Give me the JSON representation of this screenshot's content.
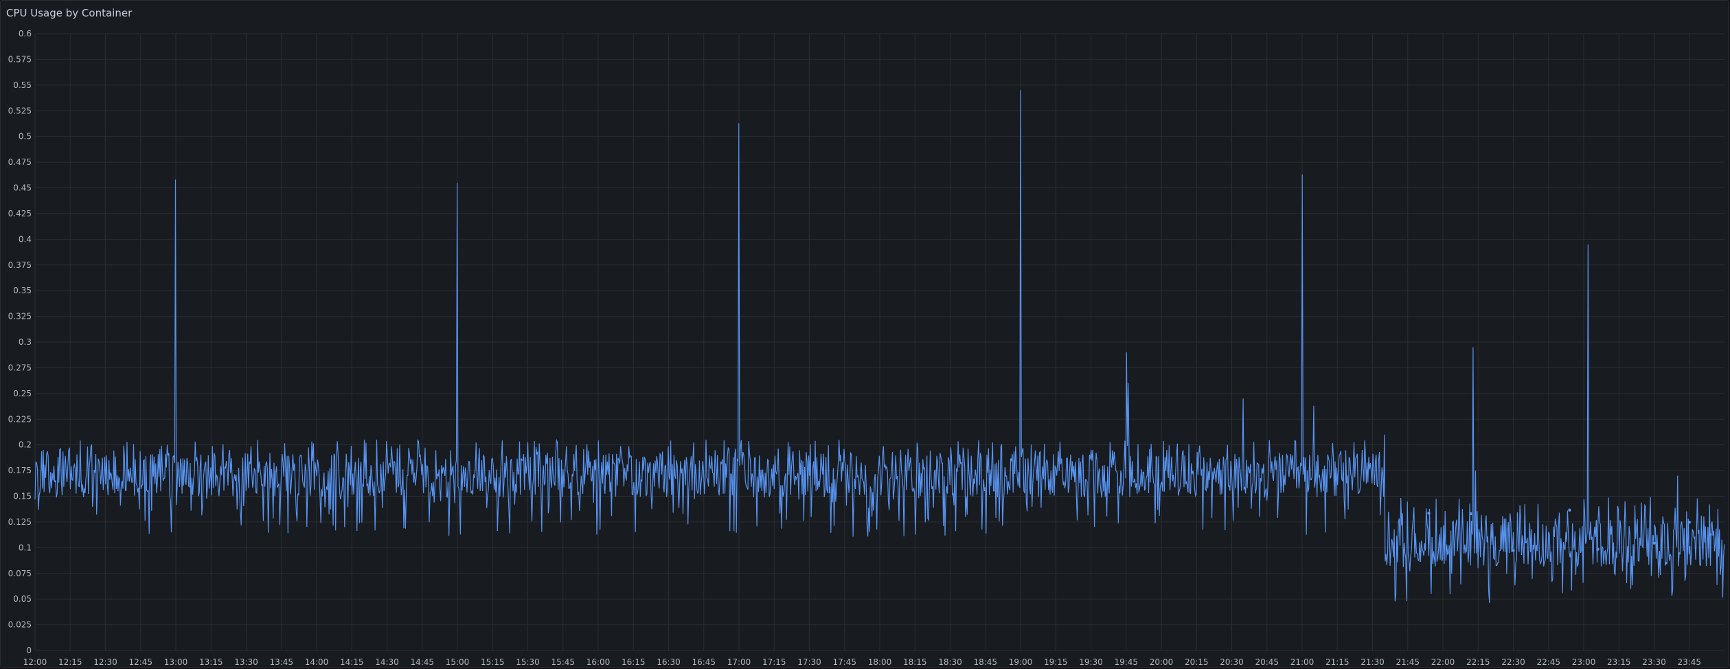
{
  "panel": {
    "title": "CPU Usage by Container"
  },
  "chart_data": {
    "type": "line",
    "title": "CPU Usage by Container",
    "xlabel": "",
    "ylabel": "",
    "ylim": [
      0,
      0.6
    ],
    "grid": true,
    "legend": "none",
    "series_color": "#5794f2",
    "background_color": "#181b1f",
    "grid_color": "#2a2d33",
    "y_ticks": [
      "0",
      "0.025",
      "0.05",
      "0.075",
      "0.1",
      "0.125",
      "0.15",
      "0.175",
      "0.2",
      "0.225",
      "0.25",
      "0.275",
      "0.3",
      "0.325",
      "0.35",
      "0.375",
      "0.4",
      "0.425",
      "0.45",
      "0.475",
      "0.5",
      "0.525",
      "0.55",
      "0.575",
      "0.6"
    ],
    "x_range": [
      "12:00",
      "24:00"
    ],
    "x_ticks": [
      "12:00",
      "12:15",
      "12:30",
      "12:45",
      "13:00",
      "13:15",
      "13:30",
      "13:45",
      "14:00",
      "14:15",
      "14:30",
      "14:45",
      "15:00",
      "15:15",
      "15:30",
      "15:45",
      "16:00",
      "16:15",
      "16:30",
      "16:45",
      "17:00",
      "17:15",
      "17:30",
      "17:45",
      "18:00",
      "18:15",
      "18:30",
      "18:45",
      "19:00",
      "19:15",
      "19:30",
      "19:45",
      "20:00",
      "20:15",
      "20:30",
      "20:45",
      "21:00",
      "21:15",
      "21:30",
      "21:45",
      "22:00",
      "22:15",
      "22:30",
      "22:45",
      "23:00",
      "23:15",
      "23:30",
      "23:45"
    ],
    "series": [
      {
        "baseline_segments": [
          {
            "from": "12:00",
            "to": "21:35",
            "mean": 0.17,
            "min": 0.11,
            "max": 0.205
          },
          {
            "from": "21:35",
            "to": "24:00",
            "mean": 0.105,
            "min": 0.045,
            "max": 0.15
          }
        ],
        "spikes": [
          {
            "x": "13:00",
            "y": 0.458
          },
          {
            "x": "15:00",
            "y": 0.455
          },
          {
            "x": "17:00",
            "y": 0.513
          },
          {
            "x": "19:00",
            "y": 0.545
          },
          {
            "x": "19:45",
            "y": 0.29
          },
          {
            "x": "19:46",
            "y": 0.26
          },
          {
            "x": "20:35",
            "y": 0.245
          },
          {
            "x": "21:00",
            "y": 0.463
          },
          {
            "x": "21:05",
            "y": 0.238
          },
          {
            "x": "21:35",
            "y": 0.21
          },
          {
            "x": "22:13",
            "y": 0.295
          },
          {
            "x": "22:14",
            "y": 0.175
          },
          {
            "x": "23:02",
            "y": 0.395
          },
          {
            "x": "23:40",
            "y": 0.17
          }
        ]
      }
    ]
  }
}
